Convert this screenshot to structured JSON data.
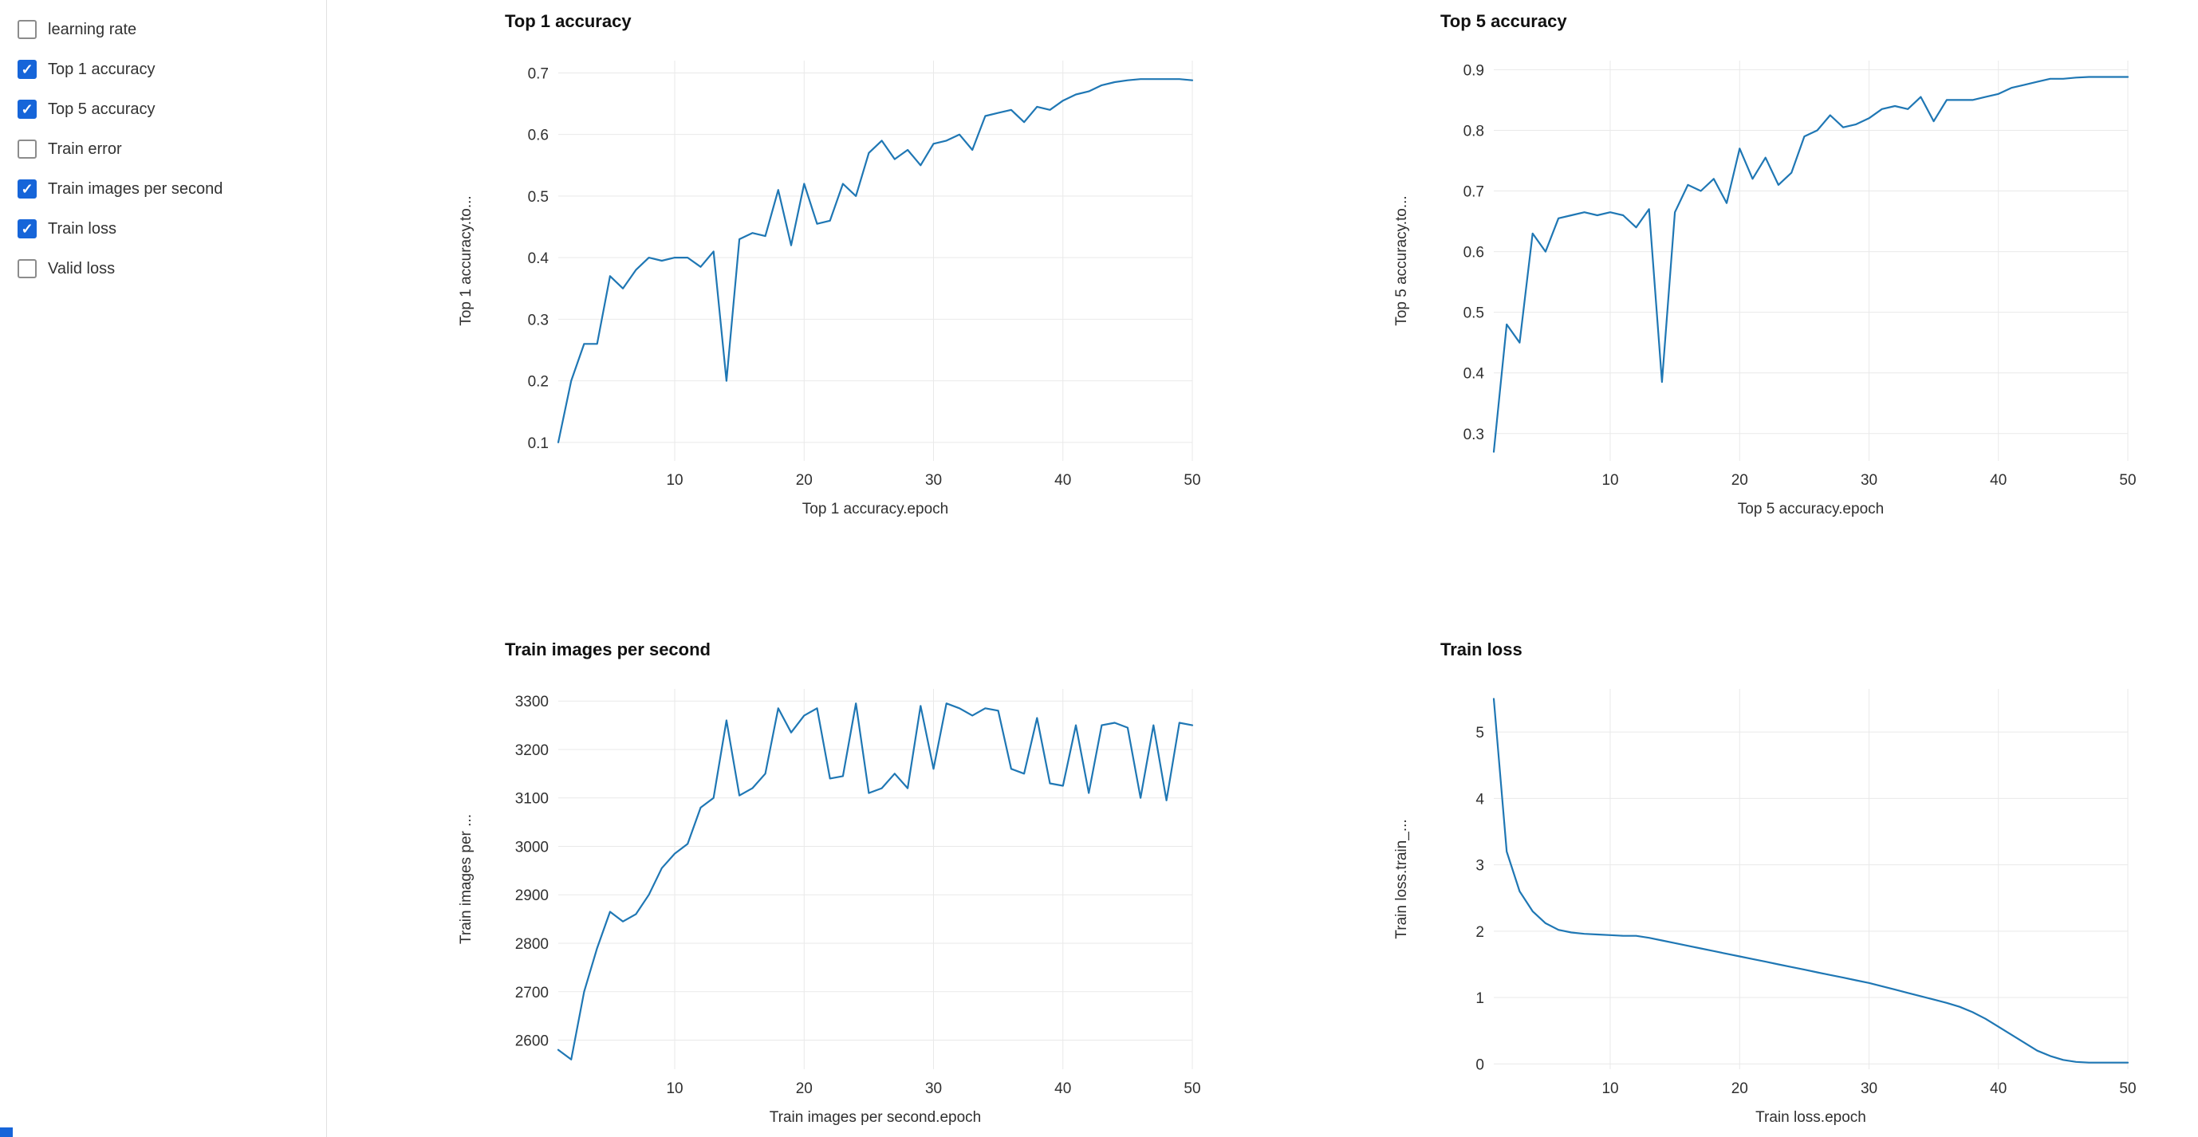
{
  "colors": {
    "line": "#1f77b4",
    "checkbox_checked": "#1665d9",
    "checkbox_border": "#8c8c8c",
    "grid": "#e9e9e9",
    "tick_text": "#303030",
    "title_text": "#111111",
    "label_text": "#323232",
    "sidebar_border": "#e1e1e1",
    "background": "#ffffff"
  },
  "sidebar": {
    "items": [
      {
        "label": "learning rate",
        "checked": false
      },
      {
        "label": "Top 1 accuracy",
        "checked": true
      },
      {
        "label": "Top 5 accuracy",
        "checked": true
      },
      {
        "label": "Train error",
        "checked": false
      },
      {
        "label": "Train images per second",
        "checked": true
      },
      {
        "label": "Train loss",
        "checked": true
      },
      {
        "label": "Valid loss",
        "checked": false
      }
    ]
  },
  "chart_data": [
    {
      "type": "line",
      "title": "Top 1 accuracy",
      "xlabel": "Top 1 accuracy.epoch",
      "ylabel": "Top 1 accuracy.to...",
      "xlim": [
        1,
        50
      ],
      "ylim": [
        0.07,
        0.72
      ],
      "xticks": [
        10,
        20,
        30,
        40,
        50
      ],
      "yticks": [
        0.1,
        0.2,
        0.3,
        0.4,
        0.5,
        0.6,
        0.7
      ],
      "grid": true,
      "legend": "none",
      "x": [
        1,
        2,
        3,
        4,
        5,
        6,
        7,
        8,
        9,
        10,
        11,
        12,
        13,
        14,
        15,
        16,
        17,
        18,
        19,
        20,
        21,
        22,
        23,
        24,
        25,
        26,
        27,
        28,
        29,
        30,
        31,
        32,
        33,
        34,
        35,
        36,
        37,
        38,
        39,
        40,
        41,
        42,
        43,
        44,
        45,
        46,
        47,
        48,
        49,
        50
      ],
      "values": [
        0.1,
        0.2,
        0.26,
        0.26,
        0.37,
        0.35,
        0.38,
        0.4,
        0.395,
        0.4,
        0.4,
        0.385,
        0.41,
        0.2,
        0.43,
        0.44,
        0.435,
        0.51,
        0.42,
        0.52,
        0.455,
        0.46,
        0.52,
        0.5,
        0.57,
        0.59,
        0.56,
        0.575,
        0.55,
        0.585,
        0.59,
        0.6,
        0.575,
        0.63,
        0.635,
        0.64,
        0.62,
        0.645,
        0.64,
        0.655,
        0.665,
        0.67,
        0.68,
        0.685,
        0.688,
        0.69,
        0.69,
        0.69,
        0.69,
        0.688
      ]
    },
    {
      "type": "line",
      "title": "Top 5 accuracy",
      "xlabel": "Top 5 accuracy.epoch",
      "ylabel": "Top 5 accuracy.to...",
      "xlim": [
        1,
        50
      ],
      "ylim": [
        0.255,
        0.915
      ],
      "xticks": [
        10,
        20,
        30,
        40,
        50
      ],
      "yticks": [
        0.3,
        0.4,
        0.5,
        0.6,
        0.7,
        0.8,
        0.9
      ],
      "grid": true,
      "legend": "none",
      "x": [
        1,
        2,
        3,
        4,
        5,
        6,
        7,
        8,
        9,
        10,
        11,
        12,
        13,
        14,
        15,
        16,
        17,
        18,
        19,
        20,
        21,
        22,
        23,
        24,
        25,
        26,
        27,
        28,
        29,
        30,
        31,
        32,
        33,
        34,
        35,
        36,
        37,
        38,
        39,
        40,
        41,
        42,
        43,
        44,
        45,
        46,
        47,
        48,
        49,
        50
      ],
      "values": [
        0.27,
        0.48,
        0.45,
        0.63,
        0.6,
        0.655,
        0.66,
        0.665,
        0.66,
        0.665,
        0.66,
        0.64,
        0.67,
        0.385,
        0.665,
        0.71,
        0.7,
        0.72,
        0.68,
        0.77,
        0.72,
        0.755,
        0.71,
        0.73,
        0.79,
        0.8,
        0.825,
        0.805,
        0.81,
        0.82,
        0.835,
        0.84,
        0.835,
        0.855,
        0.815,
        0.85,
        0.85,
        0.85,
        0.855,
        0.86,
        0.87,
        0.875,
        0.88,
        0.885,
        0.885,
        0.887,
        0.888,
        0.888,
        0.888,
        0.888
      ]
    },
    {
      "type": "line",
      "title": "Train images per second",
      "xlabel": "Train images per second.epoch",
      "ylabel": "Train images per ...",
      "xlim": [
        1,
        50
      ],
      "ylim": [
        2540,
        3325
      ],
      "xticks": [
        10,
        20,
        30,
        40,
        50
      ],
      "yticks": [
        2600,
        2700,
        2800,
        2900,
        3000,
        3100,
        3200,
        3300
      ],
      "grid": true,
      "legend": "none",
      "x": [
        1,
        2,
        3,
        4,
        5,
        6,
        7,
        8,
        9,
        10,
        11,
        12,
        13,
        14,
        15,
        16,
        17,
        18,
        19,
        20,
        21,
        22,
        23,
        24,
        25,
        26,
        27,
        28,
        29,
        30,
        31,
        32,
        33,
        34,
        35,
        36,
        37,
        38,
        39,
        40,
        41,
        42,
        43,
        44,
        45,
        46,
        47,
        48,
        49,
        50
      ],
      "values": [
        2580,
        2560,
        2700,
        2790,
        2865,
        2845,
        2860,
        2900,
        2955,
        2985,
        3005,
        3080,
        3100,
        3260,
        3105,
        3120,
        3150,
        3285,
        3235,
        3270,
        3285,
        3140,
        3145,
        3295,
        3110,
        3120,
        3150,
        3120,
        3290,
        3160,
        3295,
        3285,
        3270,
        3285,
        3280,
        3160,
        3150,
        3265,
        3130,
        3125,
        3250,
        3110,
        3250,
        3255,
        3245,
        3100,
        3250,
        3095,
        3255,
        3250
      ]
    },
    {
      "type": "line",
      "title": "Train loss",
      "xlabel": "Train loss.epoch",
      "ylabel": "Train loss.train_...",
      "xlim": [
        1,
        50
      ],
      "ylim": [
        -0.08,
        5.65
      ],
      "xticks": [
        10,
        20,
        30,
        40,
        50
      ],
      "yticks": [
        0,
        1,
        2,
        3,
        4,
        5
      ],
      "grid": true,
      "legend": "none",
      "x": [
        1,
        2,
        3,
        4,
        5,
        6,
        7,
        8,
        9,
        10,
        11,
        12,
        13,
        14,
        15,
        16,
        17,
        18,
        19,
        20,
        21,
        22,
        23,
        24,
        25,
        26,
        27,
        28,
        29,
        30,
        31,
        32,
        33,
        34,
        35,
        36,
        37,
        38,
        39,
        40,
        41,
        42,
        43,
        44,
        45,
        46,
        47,
        48,
        49,
        50
      ],
      "values": [
        5.5,
        3.2,
        2.6,
        2.3,
        2.12,
        2.02,
        1.98,
        1.96,
        1.95,
        1.94,
        1.93,
        1.93,
        1.9,
        1.86,
        1.82,
        1.78,
        1.74,
        1.7,
        1.66,
        1.62,
        1.58,
        1.54,
        1.5,
        1.46,
        1.42,
        1.38,
        1.34,
        1.3,
        1.26,
        1.22,
        1.17,
        1.12,
        1.07,
        1.02,
        0.97,
        0.92,
        0.86,
        0.78,
        0.68,
        0.56,
        0.44,
        0.32,
        0.2,
        0.12,
        0.06,
        0.03,
        0.02,
        0.02,
        0.02,
        0.02
      ]
    }
  ]
}
